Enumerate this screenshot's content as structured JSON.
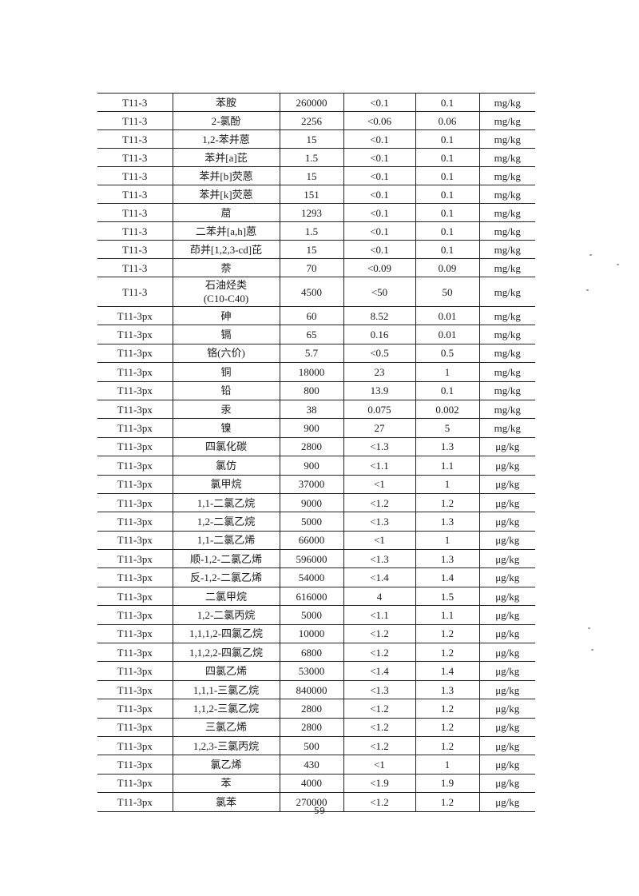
{
  "rows": [
    [
      "T11-3",
      "苯胺",
      "260000",
      "<0.1",
      "0.1",
      "mg/kg"
    ],
    [
      "T11-3",
      "2-氯酚",
      "2256",
      "<0.06",
      "0.06",
      "mg/kg"
    ],
    [
      "T11-3",
      "1,2-苯并蒽",
      "15",
      "<0.1",
      "0.1",
      "mg/kg"
    ],
    [
      "T11-3",
      "苯并[a]芘",
      "1.5",
      "<0.1",
      "0.1",
      "mg/kg"
    ],
    [
      "T11-3",
      "苯并[b]荧蒽",
      "15",
      "<0.1",
      "0.1",
      "mg/kg"
    ],
    [
      "T11-3",
      "苯并[k]荧蒽",
      "151",
      "<0.1",
      "0.1",
      "mg/kg"
    ],
    [
      "T11-3",
      "䓛",
      "1293",
      "<0.1",
      "0.1",
      "mg/kg"
    ],
    [
      "T11-3",
      "二苯并[a,h]蒽",
      "1.5",
      "<0.1",
      "0.1",
      "mg/kg"
    ],
    [
      "T11-3",
      "茚并[1,2,3-cd]芘",
      "15",
      "<0.1",
      "0.1",
      "mg/kg"
    ],
    [
      "T11-3",
      "萘",
      "70",
      "<0.09",
      "0.09",
      "mg/kg"
    ],
    [
      "T11-3",
      "石油烃类\n(C10-C40)",
      "4500",
      "<50",
      "50",
      "mg/kg"
    ],
    [
      "T11-3px",
      "砷",
      "60",
      "8.52",
      "0.01",
      "mg/kg"
    ],
    [
      "T11-3px",
      "镉",
      "65",
      "0.16",
      "0.01",
      "mg/kg"
    ],
    [
      "T11-3px",
      "铬(六价)",
      "5.7",
      "<0.5",
      "0.5",
      "mg/kg"
    ],
    [
      "T11-3px",
      "铜",
      "18000",
      "23",
      "1",
      "mg/kg"
    ],
    [
      "T11-3px",
      "铅",
      "800",
      "13.9",
      "0.1",
      "mg/kg"
    ],
    [
      "T11-3px",
      "汞",
      "38",
      "0.075",
      "0.002",
      "mg/kg"
    ],
    [
      "T11-3px",
      "镍",
      "900",
      "27",
      "5",
      "mg/kg"
    ],
    [
      "T11-3px",
      "四氯化碳",
      "2800",
      "<1.3",
      "1.3",
      "μg/kg"
    ],
    [
      "T11-3px",
      "氯仿",
      "900",
      "<1.1",
      "1.1",
      "μg/kg"
    ],
    [
      "T11-3px",
      "氯甲烷",
      "37000",
      "<1",
      "1",
      "μg/kg"
    ],
    [
      "T11-3px",
      "1,1-二氯乙烷",
      "9000",
      "<1.2",
      "1.2",
      "μg/kg"
    ],
    [
      "T11-3px",
      "1,2-二氯乙烷",
      "5000",
      "<1.3",
      "1.3",
      "μg/kg"
    ],
    [
      "T11-3px",
      "1,1-二氯乙烯",
      "66000",
      "<1",
      "1",
      "μg/kg"
    ],
    [
      "T11-3px",
      "顺-1,2-二氯乙烯",
      "596000",
      "<1.3",
      "1.3",
      "μg/kg"
    ],
    [
      "T11-3px",
      "反-1,2-二氯乙烯",
      "54000",
      "<1.4",
      "1.4",
      "μg/kg"
    ],
    [
      "T11-3px",
      "二氯甲烷",
      "616000",
      "4",
      "1.5",
      "μg/kg"
    ],
    [
      "T11-3px",
      "1,2-二氯丙烷",
      "5000",
      "<1.1",
      "1.1",
      "μg/kg"
    ],
    [
      "T11-3px",
      "1,1,1,2-四氯乙烷",
      "10000",
      "<1.2",
      "1.2",
      "μg/kg"
    ],
    [
      "T11-3px",
      "1,1,2,2-四氯乙烷",
      "6800",
      "<1.2",
      "1.2",
      "μg/kg"
    ],
    [
      "T11-3px",
      "四氯乙烯",
      "53000",
      "<1.4",
      "1.4",
      "μg/kg"
    ],
    [
      "T11-3px",
      "1,1,1-三氯乙烷",
      "840000",
      "<1.3",
      "1.3",
      "μg/kg"
    ],
    [
      "T11-3px",
      "1,1,2-三氯乙烷",
      "2800",
      "<1.2",
      "1.2",
      "μg/kg"
    ],
    [
      "T11-3px",
      "三氯乙烯",
      "2800",
      "<1.2",
      "1.2",
      "μg/kg"
    ],
    [
      "T11-3px",
      "1,2,3-三氯丙烷",
      "500",
      "<1.2",
      "1.2",
      "μg/kg"
    ],
    [
      "T11-3px",
      "氯乙烯",
      "430",
      "<1",
      "1",
      "μg/kg"
    ],
    [
      "T11-3px",
      "苯",
      "4000",
      "<1.9",
      "1.9",
      "μg/kg"
    ],
    [
      "T11-3px",
      "氯苯",
      "270000",
      "<1.2",
      "1.2",
      "μg/kg"
    ]
  ],
  "page_number": "59"
}
